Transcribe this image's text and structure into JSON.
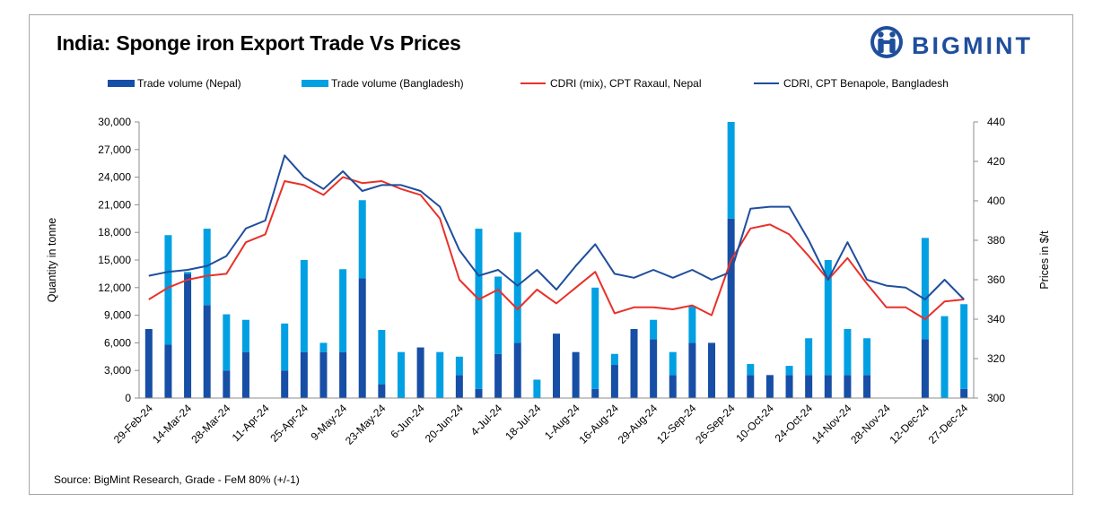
{
  "header": {
    "title": "India: Sponge iron Export Trade Vs Prices",
    "brand": "BIGMINT"
  },
  "source": "Source: BigMint Research, Grade - FeM 80% (+/-1)",
  "colors": {
    "nepal_bar": "#174ea6",
    "bangladesh_bar": "#00a0e3",
    "raxaul_line": "#e8312a",
    "benapole_line": "#1f4e9c",
    "brand": "#1f4e9c"
  },
  "chart_data": {
    "type": "bar+line",
    "title": "India: Sponge iron Export Trade Vs Prices",
    "ylabel": "Quantity in tonne",
    "y2label": "Prices in $/t",
    "ylim": [
      0,
      30000
    ],
    "yticks": [
      0,
      3000,
      6000,
      9000,
      12000,
      15000,
      18000,
      21000,
      24000,
      27000,
      30000
    ],
    "ytick_labels": [
      "0",
      "3,000",
      "6,000",
      "9,000",
      "12,000",
      "15,000",
      "18,000",
      "21,000",
      "24,000",
      "27,000",
      "30,000"
    ],
    "y2lim": [
      300,
      440
    ],
    "y2ticks": [
      300,
      320,
      340,
      360,
      380,
      400,
      420,
      440
    ],
    "x_labels": [
      "29-Feb-24",
      "14-Mar-24",
      "28-Mar-24",
      "11-Apr-24",
      "25-Apr-24",
      "9-May-24",
      "23-May-24",
      "6-Jun-24",
      "20-Jun-24",
      "4-Jul-24",
      "18-Jul-24",
      "1-Aug-24",
      "16-Aug-24",
      "29-Aug-24",
      "12-Sep-24",
      "26-Sep-24",
      "10-Oct-24",
      "24-Oct-24",
      "14-Nov-24",
      "28-Nov-24",
      "12-Dec-24",
      "27-Dec-24"
    ],
    "legend": [
      "Trade volume (Nepal)",
      "Trade volume (Bangladesh)",
      "CDRI (mix), CPT Raxaul, Nepal",
      "CDRI, CPT Benapole, Bangladesh"
    ],
    "series": [
      {
        "name": "Trade volume (Nepal)",
        "type": "bar",
        "axis": "left",
        "values": [
          7500,
          5800,
          13500,
          10100,
          3000,
          5000,
          0,
          3000,
          5000,
          5000,
          5000,
          13000,
          1500,
          0,
          5500,
          0,
          2500,
          1000,
          4800,
          6000,
          0,
          7000,
          5000,
          1000,
          3600,
          7500,
          6400,
          2500,
          6000,
          6000,
          19500,
          2500,
          2500,
          2500,
          2500,
          2500,
          2500,
          2500,
          0,
          0,
          6400,
          0,
          1000
        ]
      },
      {
        "name": "Trade volume (Bangladesh)",
        "type": "bar",
        "axis": "left",
        "values": [
          0,
          11900,
          200,
          8300,
          6100,
          3500,
          0,
          5100,
          10000,
          1000,
          9000,
          8500,
          5900,
          5000,
          0,
          5000,
          2000,
          17400,
          8400,
          12000,
          2000,
          0,
          0,
          11000,
          1200,
          0,
          2100,
          2500,
          4000,
          0,
          10500,
          1200,
          0,
          1000,
          4000,
          12500,
          5000,
          4000,
          0,
          0,
          11000,
          8900,
          9200
        ]
      },
      {
        "name": "CDRI (mix), CPT Raxaul, Nepal",
        "type": "line",
        "axis": "right",
        "values": [
          350,
          356,
          360,
          362,
          363,
          379,
          383,
          410,
          408,
          403,
          412,
          409,
          410,
          406,
          403,
          391,
          360,
          350,
          355,
          345,
          355,
          348,
          356,
          364,
          343,
          346,
          346,
          345,
          347,
          342,
          370,
          386,
          388,
          383,
          372,
          360,
          371,
          358,
          346,
          346,
          340,
          349,
          350
        ]
      },
      {
        "name": "CDRI, CPT Benapole, Bangladesh",
        "type": "line",
        "axis": "right",
        "values": [
          362,
          364,
          365,
          367,
          372,
          386,
          390,
          423,
          412,
          406,
          415,
          405,
          408,
          408,
          405,
          397,
          375,
          362,
          365,
          357,
          365,
          355,
          367,
          378,
          363,
          361,
          365,
          361,
          365,
          360,
          364,
          396,
          397,
          397,
          380,
          360,
          379,
          360,
          357,
          356,
          350,
          360,
          350
        ]
      }
    ]
  }
}
